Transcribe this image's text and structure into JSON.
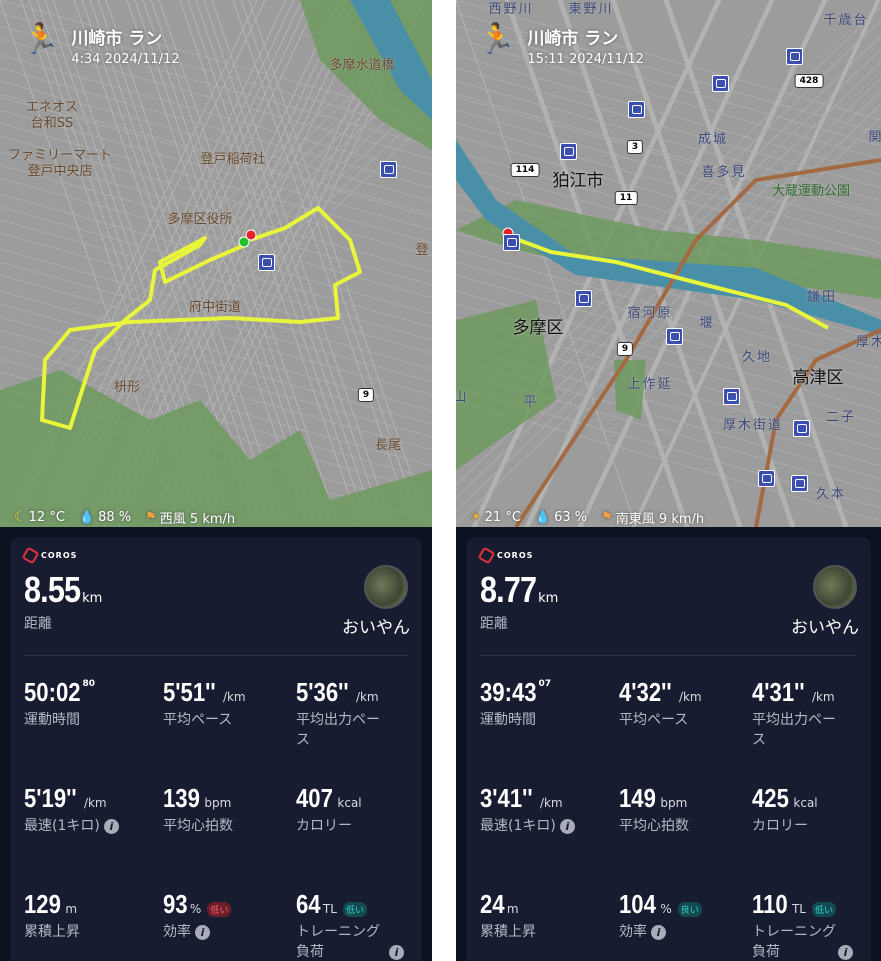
{
  "brand": "COROS",
  "colors": {
    "route": "#e8f53a",
    "card_bg": "#171c31",
    "page_bg": "#0c1122",
    "badge_low_red": "#ff5a66",
    "badge_teal": "#35d0d8",
    "start": "#22c02a",
    "end": "#e8202a"
  },
  "activities": [
    {
      "title": "川崎市 ラン",
      "time": "4:34 2024/11/12",
      "weather": {
        "icon": "moon-icon",
        "temp": "12 °C",
        "humidity": "88 %",
        "wind": "西風 5 km/h"
      },
      "map": {
        "labels": [
          "エネオス\n台和SS",
          "ファミリーマート\n登戸中央店",
          "登戸稲荷社",
          "多摩区役所",
          "多摩水道橋",
          "府中街道",
          "枡形",
          "長尾",
          "登"
        ],
        "roads": [
          "9"
        ]
      },
      "distance": {
        "value": "8.55",
        "unit": "km",
        "label": "距離"
      },
      "user": "おいやん",
      "stats": [
        {
          "value": "50:02",
          "sup": "80",
          "unit": "",
          "label": "運動時間"
        },
        {
          "value": "5'51''",
          "unit": "/km",
          "label": "平均ペース"
        },
        {
          "value": "5'36''",
          "unit": "/km",
          "label": "平均出力ペース"
        },
        {
          "value": "5'19''",
          "unit": "/km",
          "label": "最速(1キロ)",
          "info": true
        },
        {
          "value": "139",
          "unit": "bpm",
          "label": "平均心拍数"
        },
        {
          "value": "407",
          "unit": "kcal",
          "label": "カロリー"
        },
        {
          "value": "129",
          "unit": "m",
          "label": "累積上昇"
        },
        {
          "value": "93",
          "unit": "%",
          "badge": "低い",
          "badge_color": "red",
          "label": "効率",
          "info": true
        },
        {
          "value": "64",
          "unit": "TL",
          "badge": "低い",
          "badge_color": "teal",
          "label": "トレーニング負荷",
          "info_corner": true
        }
      ]
    },
    {
      "title": "川崎市 ラン",
      "time": "15:11 2024/11/12",
      "weather": {
        "icon": "sun-icon",
        "temp": "21 °C",
        "humidity": "63 %",
        "wind": "南東風 9 km/h"
      },
      "map": {
        "labels": [
          "千歳台",
          "東野川",
          "西野川",
          "成城",
          "喜多見",
          "大蔵運動公園",
          "狛江市",
          "多摩区",
          "宿河原",
          "堰",
          "久地",
          "高津区",
          "上作延",
          "平",
          "厚木街道",
          "二子",
          "久本",
          "鎌田",
          "厚木",
          "山",
          "関"
        ],
        "roads": [
          "428",
          "3",
          "114",
          "11",
          "9"
        ]
      },
      "distance": {
        "value": "8.77",
        "unit": "km",
        "label": "距離"
      },
      "user": "おいやん",
      "stats": [
        {
          "value": "39:43",
          "sup": "07",
          "unit": "",
          "label": "運動時間"
        },
        {
          "value": "4'32''",
          "unit": "/km",
          "label": "平均ペース"
        },
        {
          "value": "4'31''",
          "unit": "/km",
          "label": "平均出力ペース"
        },
        {
          "value": "3'41''",
          "unit": "/km",
          "label": "最速(1キロ)",
          "info": true
        },
        {
          "value": "149",
          "unit": "bpm",
          "label": "平均心拍数"
        },
        {
          "value": "425",
          "unit": "kcal",
          "label": "カロリー"
        },
        {
          "value": "24",
          "unit": "m",
          "label": "累積上昇"
        },
        {
          "value": "104",
          "unit": "%",
          "badge": "良い",
          "badge_color": "teal",
          "label": "効率",
          "info": true
        },
        {
          "value": "110",
          "unit": "TL",
          "badge": "低い",
          "badge_color": "teal",
          "label": "トレーニング負荷",
          "info_corner": true
        }
      ]
    }
  ]
}
